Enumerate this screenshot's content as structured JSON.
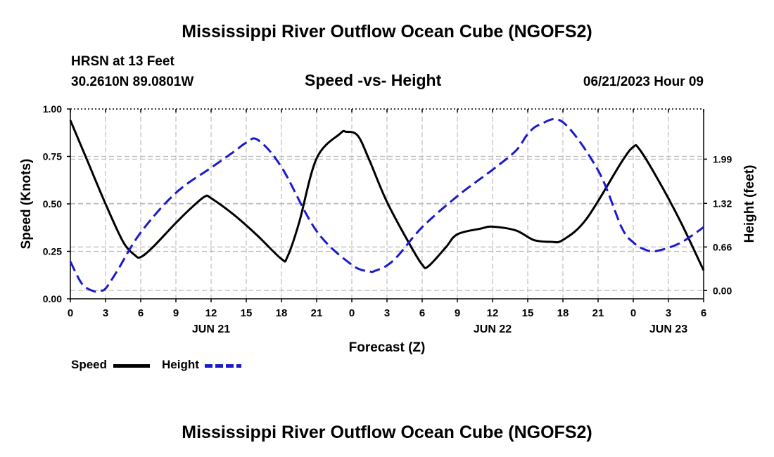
{
  "page": {
    "title_top": "Mississippi River Outflow Ocean Cube (NGOFS2)",
    "title_bottom": "Mississippi River Outflow Ocean Cube (NGOFS2)",
    "station": "HRSN at 13 Feet",
    "coords": "30.2610N  89.0801W",
    "subtitle": "Speed -vs- Height",
    "datetime": "06/21/2023 Hour 09"
  },
  "legend": {
    "speed_label": "Speed",
    "height_label": "Height",
    "speed_color": "#000000",
    "height_color": "#1a1acc"
  },
  "chart_data": {
    "type": "line",
    "xlabel": "Forecast (Z)",
    "ylabel_left": "Speed (Knots)",
    "ylabel_right": "Height (feet)",
    "x_unit": "hours from 2023-06-21 00Z",
    "xlim": [
      0,
      54
    ],
    "ylim_left": [
      0,
      1
    ],
    "ylim_right": [
      -0.125,
      2.75
    ],
    "x_ticks": [
      0,
      3,
      6,
      9,
      12,
      15,
      18,
      21,
      24,
      27,
      30,
      33,
      36,
      39,
      42,
      45,
      48,
      51,
      54
    ],
    "x_tick_labels": [
      "0",
      "3",
      "6",
      "9",
      "12",
      "15",
      "18",
      "21",
      "0",
      "3",
      "6",
      "9",
      "12",
      "15",
      "18",
      "21",
      "0",
      "3",
      "6"
    ],
    "day_labels": [
      {
        "x": 12,
        "label": "JUN 21"
      },
      {
        "x": 36,
        "label": "JUN 22"
      },
      {
        "x": 51,
        "label": "JUN 23"
      }
    ],
    "y_ticks_left": [
      0,
      0.25,
      0.5,
      0.75,
      1.0
    ],
    "y_tick_labels_left": [
      "0.00",
      "0.25",
      "0.50",
      "0.75",
      "1.00"
    ],
    "y_ticks_right": [
      0,
      0.66,
      1.32,
      1.99
    ],
    "y_tick_labels_right": [
      "0.00",
      "0.66",
      "1.32",
      "1.99"
    ],
    "grid": true,
    "series": [
      {
        "name": "Speed",
        "axis": "left",
        "style": "solid",
        "color": "#000000",
        "x": [
          0,
          1.5,
          3,
          4.5,
          5.5,
          6,
          7,
          9,
          10.5,
          11.5,
          12,
          14,
          16,
          18,
          18.5,
          19.5,
          21,
          23,
          23.5,
          24.5,
          25.5,
          27,
          29,
          30,
          30.5,
          32,
          33,
          35,
          36,
          38,
          39.5,
          41,
          42,
          44,
          47,
          48,
          48.5,
          50,
          52,
          54
        ],
        "y": [
          0.94,
          0.72,
          0.5,
          0.3,
          0.23,
          0.22,
          0.27,
          0.4,
          0.49,
          0.54,
          0.53,
          0.44,
          0.33,
          0.21,
          0.22,
          0.4,
          0.74,
          0.87,
          0.88,
          0.86,
          0.73,
          0.51,
          0.28,
          0.18,
          0.17,
          0.27,
          0.34,
          0.37,
          0.38,
          0.36,
          0.31,
          0.3,
          0.31,
          0.42,
          0.72,
          0.8,
          0.79,
          0.64,
          0.41,
          0.15
        ]
      },
      {
        "name": "Height",
        "axis": "right",
        "style": "dashed",
        "color": "#1a1acc",
        "x": [
          0,
          1,
          2,
          2.5,
          3,
          4,
          6,
          9,
          12,
          14,
          15,
          16,
          18,
          21,
          24,
          25.5,
          26,
          27,
          28,
          30,
          33,
          36,
          38,
          39,
          40,
          42,
          45,
          47,
          48,
          49,
          50,
          52,
          54
        ],
        "y": [
          0.44,
          0.1,
          -0.01,
          0.0,
          0.03,
          0.3,
          0.88,
          1.48,
          1.86,
          2.11,
          2.24,
          2.28,
          1.87,
          0.9,
          0.39,
          0.29,
          0.3,
          0.38,
          0.54,
          0.96,
          1.43,
          1.83,
          2.12,
          2.37,
          2.51,
          2.55,
          1.82,
          0.96,
          0.73,
          0.62,
          0.6,
          0.72,
          0.96
        ]
      }
    ]
  }
}
